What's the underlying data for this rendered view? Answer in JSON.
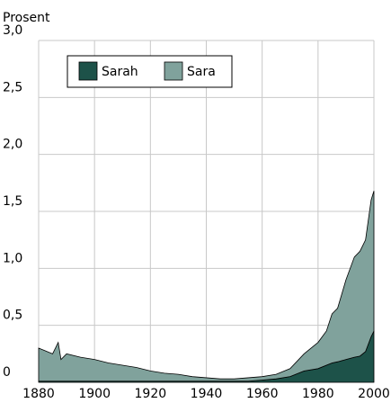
{
  "chart_data": {
    "type": "stacked-area",
    "y_label": "Prosent",
    "x": [
      1880,
      1882,
      1885,
      1887,
      1888,
      1890,
      1895,
      1900,
      1905,
      1910,
      1915,
      1920,
      1925,
      1930,
      1935,
      1940,
      1945,
      1950,
      1955,
      1960,
      1965,
      1970,
      1975,
      1980,
      1983,
      1985,
      1987,
      1990,
      1993,
      1995,
      1997,
      1999,
      2000
    ],
    "series": [
      {
        "name": "Sarah",
        "color": "#1d5249",
        "values": [
          0.01,
          0.01,
          0.01,
          0.01,
          0.01,
          0.01,
          0.01,
          0.01,
          0.01,
          0.01,
          0.01,
          0.01,
          0.01,
          0.01,
          0.01,
          0.01,
          0.01,
          0.01,
          0.01,
          0.02,
          0.03,
          0.05,
          0.1,
          0.12,
          0.15,
          0.17,
          0.18,
          0.2,
          0.22,
          0.23,
          0.27,
          0.4,
          0.45
        ]
      },
      {
        "name": "Sara",
        "color": "#80a29c",
        "values": [
          0.29,
          0.27,
          0.24,
          0.34,
          0.19,
          0.24,
          0.21,
          0.19,
          0.16,
          0.14,
          0.12,
          0.09,
          0.07,
          0.06,
          0.04,
          0.03,
          0.02,
          0.02,
          0.03,
          0.03,
          0.04,
          0.07,
          0.15,
          0.23,
          0.3,
          0.43,
          0.47,
          0.7,
          0.88,
          0.92,
          0.98,
          1.2,
          1.23
        ]
      }
    ],
    "xlim": [
      1880,
      2000
    ],
    "xticks": [
      1880,
      1900,
      1920,
      1940,
      1960,
      1980,
      2000
    ],
    "ylim": [
      0,
      3
    ],
    "yticks": [
      0,
      {
        "value": 0.5,
        "label": "0,5"
      },
      {
        "value": 1,
        "label": "1,0"
      },
      {
        "value": 1.5,
        "label": "1,5"
      },
      {
        "value": 2,
        "label": "2,0"
      },
      {
        "value": 2.5,
        "label": "2,5"
      },
      {
        "value": 3,
        "label": "3,0"
      }
    ],
    "grid": true
  }
}
